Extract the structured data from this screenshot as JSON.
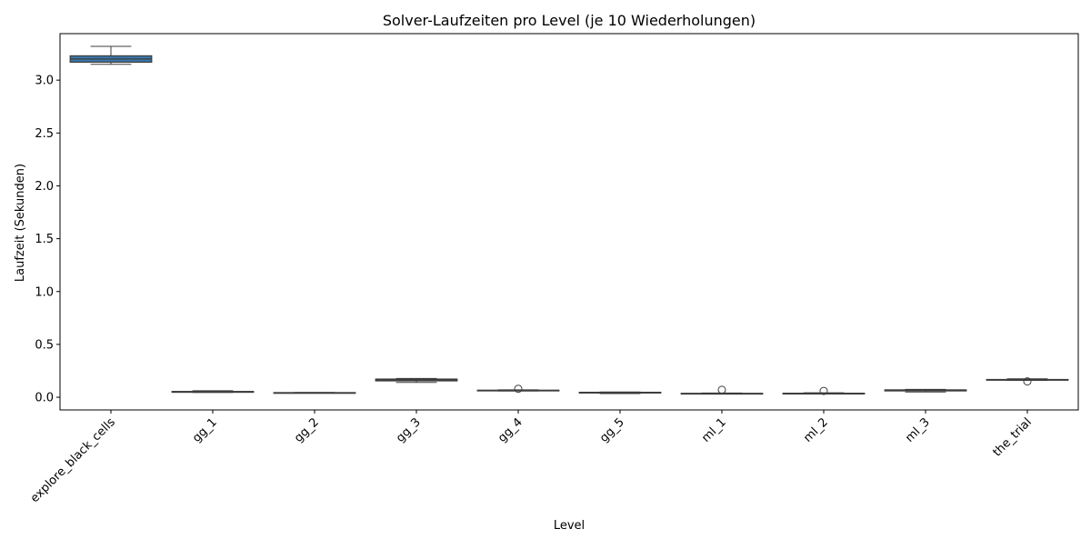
{
  "chart_data": {
    "type": "box",
    "title": "Solver-Laufzeiten pro Level (je 10 Wiederholungen)",
    "xlabel": "Level",
    "ylabel": "Laufzeit (Sekunden)",
    "ylim": [
      -0.12,
      3.44
    ],
    "yticks": [
      0.0,
      0.5,
      1.0,
      1.5,
      2.0,
      2.5,
      3.0
    ],
    "ytick_labels": [
      "0.0",
      "0.5",
      "1.0",
      "1.5",
      "2.0",
      "2.5",
      "3.0"
    ],
    "grid": false,
    "legend": "none",
    "box_color": "#3a76a8",
    "categories": [
      "explore_black_cells",
      "gg_1",
      "gg_2",
      "gg_3",
      "gg_4",
      "gg_5",
      "ml_1",
      "ml_2",
      "ml_3",
      "the_trial"
    ],
    "boxes": [
      {
        "min": 3.15,
        "q1": 3.17,
        "median": 3.2,
        "q3": 3.23,
        "max": 3.32,
        "outliers": []
      },
      {
        "min": 0.045,
        "q1": 0.047,
        "median": 0.05,
        "q3": 0.055,
        "max": 0.062,
        "outliers": []
      },
      {
        "min": 0.04,
        "q1": 0.041,
        "median": 0.042,
        "q3": 0.044,
        "max": 0.046,
        "outliers": []
      },
      {
        "min": 0.14,
        "q1": 0.155,
        "median": 0.165,
        "q3": 0.172,
        "max": 0.178,
        "outliers": []
      },
      {
        "min": 0.06,
        "q1": 0.062,
        "median": 0.064,
        "q3": 0.067,
        "max": 0.07,
        "outliers": [
          0.08
        ]
      },
      {
        "min": 0.035,
        "q1": 0.04,
        "median": 0.043,
        "q3": 0.047,
        "max": 0.05,
        "outliers": []
      },
      {
        "min": 0.032,
        "q1": 0.033,
        "median": 0.035,
        "q3": 0.037,
        "max": 0.04,
        "outliers": [
          0.07
        ]
      },
      {
        "min": 0.03,
        "q1": 0.033,
        "median": 0.035,
        "q3": 0.038,
        "max": 0.042,
        "outliers": [
          0.06
        ]
      },
      {
        "min": 0.05,
        "q1": 0.06,
        "median": 0.065,
        "q3": 0.07,
        "max": 0.075,
        "outliers": []
      },
      {
        "min": 0.16,
        "q1": 0.162,
        "median": 0.165,
        "q3": 0.168,
        "max": 0.175,
        "outliers": [
          0.15
        ]
      }
    ]
  }
}
